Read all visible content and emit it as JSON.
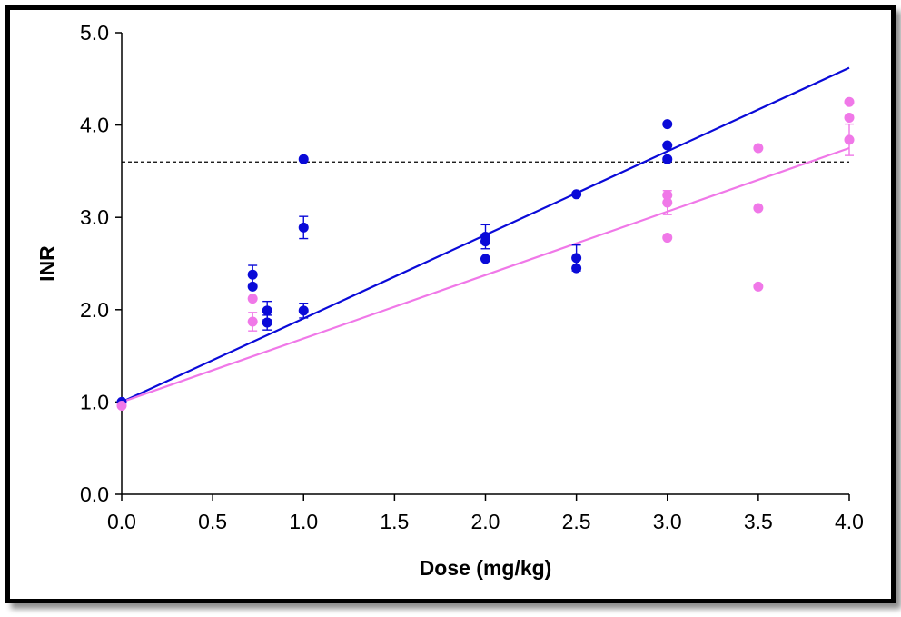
{
  "chart_data": {
    "type": "scatter",
    "title": "",
    "xlabel": "Dose (mg/kg)",
    "ylabel": "INR",
    "xlim": [
      0,
      4
    ],
    "ylim": [
      0,
      5
    ],
    "x_ticks": [
      "0.0",
      "0.5",
      "1.0",
      "1.5",
      "2.0",
      "2.5",
      "3.0",
      "3.5",
      "4.0"
    ],
    "y_ticks": [
      "0.0",
      "1.0",
      "2.0",
      "3.0",
      "4.0",
      "5.0"
    ],
    "grid": false,
    "reference_line": {
      "y": 3.6,
      "style": "dashed",
      "color": "#000000"
    },
    "series": [
      {
        "color": "#0a0ad8",
        "points": [
          {
            "x": 0.0,
            "y": 1.0
          },
          {
            "x": 0.72,
            "y": 2.38,
            "err": 0.1
          },
          {
            "x": 0.72,
            "y": 2.25
          },
          {
            "x": 0.8,
            "y": 1.99,
            "err": 0.1
          },
          {
            "x": 0.8,
            "y": 1.86,
            "err": 0.08
          },
          {
            "x": 1.0,
            "y": 3.63
          },
          {
            "x": 1.0,
            "y": 2.89,
            "err": 0.12
          },
          {
            "x": 1.0,
            "y": 1.99,
            "err": 0.08
          },
          {
            "x": 2.0,
            "y": 2.79,
            "err": 0.13
          },
          {
            "x": 2.0,
            "y": 2.74
          },
          {
            "x": 2.0,
            "y": 2.55
          },
          {
            "x": 2.5,
            "y": 3.25
          },
          {
            "x": 2.5,
            "y": 2.56,
            "err": 0.14
          },
          {
            "x": 2.5,
            "y": 2.45
          },
          {
            "x": 3.0,
            "y": 4.01
          },
          {
            "x": 3.0,
            "y": 3.78
          },
          {
            "x": 3.0,
            "y": 3.63
          }
        ],
        "trendline": {
          "x": [
            0,
            4
          ],
          "y": [
            1.0,
            4.62
          ]
        }
      },
      {
        "color": "#f078e8",
        "points": [
          {
            "x": 0.0,
            "y": 0.96
          },
          {
            "x": 0.72,
            "y": 2.12
          },
          {
            "x": 0.72,
            "y": 1.87,
            "err": 0.1
          },
          {
            "x": 3.0,
            "y": 3.24
          },
          {
            "x": 3.0,
            "y": 3.16,
            "err": 0.13
          },
          {
            "x": 3.0,
            "y": 2.78
          },
          {
            "x": 3.5,
            "y": 3.75
          },
          {
            "x": 3.5,
            "y": 3.1
          },
          {
            "x": 3.5,
            "y": 2.25
          },
          {
            "x": 4.0,
            "y": 4.25
          },
          {
            "x": 4.0,
            "y": 4.08
          },
          {
            "x": 4.0,
            "y": 3.84,
            "err": 0.17
          }
        ],
        "trendline": {
          "x": [
            0,
            4
          ],
          "y": [
            1.0,
            3.75
          ]
        }
      }
    ]
  }
}
